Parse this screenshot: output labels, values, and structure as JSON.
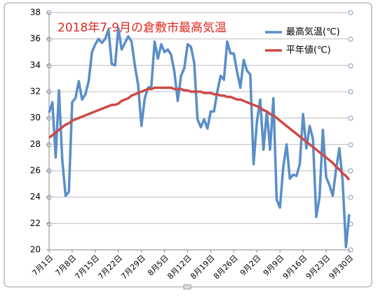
{
  "chart_data": {
    "type": "line",
    "title": "2018年7-9月の倉敷市最高気温",
    "categories": [
      "7月1日",
      null,
      null,
      null,
      null,
      null,
      null,
      "7月8日",
      null,
      null,
      null,
      null,
      null,
      null,
      "7月15日",
      null,
      null,
      null,
      null,
      null,
      null,
      "7月22日",
      null,
      null,
      null,
      null,
      null,
      null,
      "7月29日",
      null,
      null,
      null,
      null,
      null,
      null,
      "8月5日",
      null,
      null,
      null,
      null,
      null,
      null,
      "8月12日",
      null,
      null,
      null,
      null,
      null,
      null,
      "8月19日",
      null,
      null,
      null,
      null,
      null,
      null,
      "8月26日",
      null,
      null,
      null,
      null,
      null,
      null,
      "9月2日",
      null,
      null,
      null,
      null,
      null,
      null,
      "9月9日",
      null,
      null,
      null,
      null,
      null,
      null,
      "9月16日",
      null,
      null,
      null,
      null,
      null,
      null,
      "9月23日",
      null,
      null,
      null,
      null,
      null,
      null,
      "9月30日"
    ],
    "series": [
      {
        "name": "最高気温(℃)",
        "color": "#5a8ec8",
        "values": [
          30.4,
          31.2,
          27.0,
          32.1,
          26.8,
          24.1,
          24.4,
          31.2,
          31.5,
          32.8,
          31.4,
          31.8,
          32.8,
          35.0,
          35.6,
          36.0,
          35.7,
          36.0,
          36.7,
          34.1,
          34.0,
          36.8,
          35.2,
          35.7,
          36.2,
          35.8,
          34.0,
          32.5,
          29.4,
          31.5,
          32.3,
          32.4,
          35.8,
          34.5,
          35.6,
          35.0,
          35.2,
          34.8,
          33.5,
          31.3,
          33.2,
          33.8,
          35.6,
          35.4,
          34.2,
          29.9,
          29.3,
          29.9,
          29.2,
          30.5,
          30.5,
          32.0,
          33.2,
          32.9,
          35.8,
          34.9,
          34.9,
          33.5,
          32.3,
          34.4,
          33.6,
          33.3,
          26.5,
          29.7,
          31.4,
          27.6,
          30.5,
          27.6,
          31.5,
          23.8,
          23.2,
          26.3,
          28.0,
          25.4,
          25.7,
          25.6,
          26.5,
          30.3,
          27.7,
          29.4,
          28.4,
          22.5,
          24.0,
          29.1,
          25.5,
          24.9,
          24.1,
          26.1,
          27.7,
          25.2,
          20.2,
          22.7
        ]
      },
      {
        "name": "平年値(℃)",
        "color": "#cc4b45",
        "values": [
          28.5,
          28.7,
          28.9,
          29.1,
          29.3,
          29.5,
          29.6,
          29.8,
          29.9,
          30.0,
          30.1,
          30.2,
          30.3,
          30.4,
          30.5,
          30.6,
          30.7,
          30.8,
          30.9,
          31.0,
          31.0,
          31.1,
          31.3,
          31.4,
          31.5,
          31.7,
          31.8,
          31.9,
          32.0,
          32.1,
          32.2,
          32.2,
          32.3,
          32.3,
          32.3,
          32.3,
          32.3,
          32.3,
          32.2,
          32.2,
          32.2,
          32.1,
          32.1,
          32.0,
          32.0,
          32.0,
          32.0,
          31.9,
          31.9,
          31.9,
          31.8,
          31.8,
          31.7,
          31.7,
          31.6,
          31.6,
          31.5,
          31.4,
          31.4,
          31.3,
          31.2,
          31.1,
          31.0,
          30.9,
          30.8,
          30.6,
          30.5,
          30.3,
          30.2,
          30.0,
          29.8,
          29.6,
          29.4,
          29.2,
          29.0,
          28.8,
          28.6,
          28.4,
          28.2,
          28.0,
          27.8,
          27.6,
          27.4,
          27.2,
          27.0,
          26.8,
          26.6,
          26.3,
          26.1,
          25.8,
          25.6,
          25.3
        ]
      }
    ],
    "ylim": [
      20,
      38
    ],
    "yticks": [
      20,
      22,
      24,
      26,
      28,
      30,
      32,
      34,
      36,
      38
    ],
    "grid": true,
    "legend": "top-right"
  }
}
